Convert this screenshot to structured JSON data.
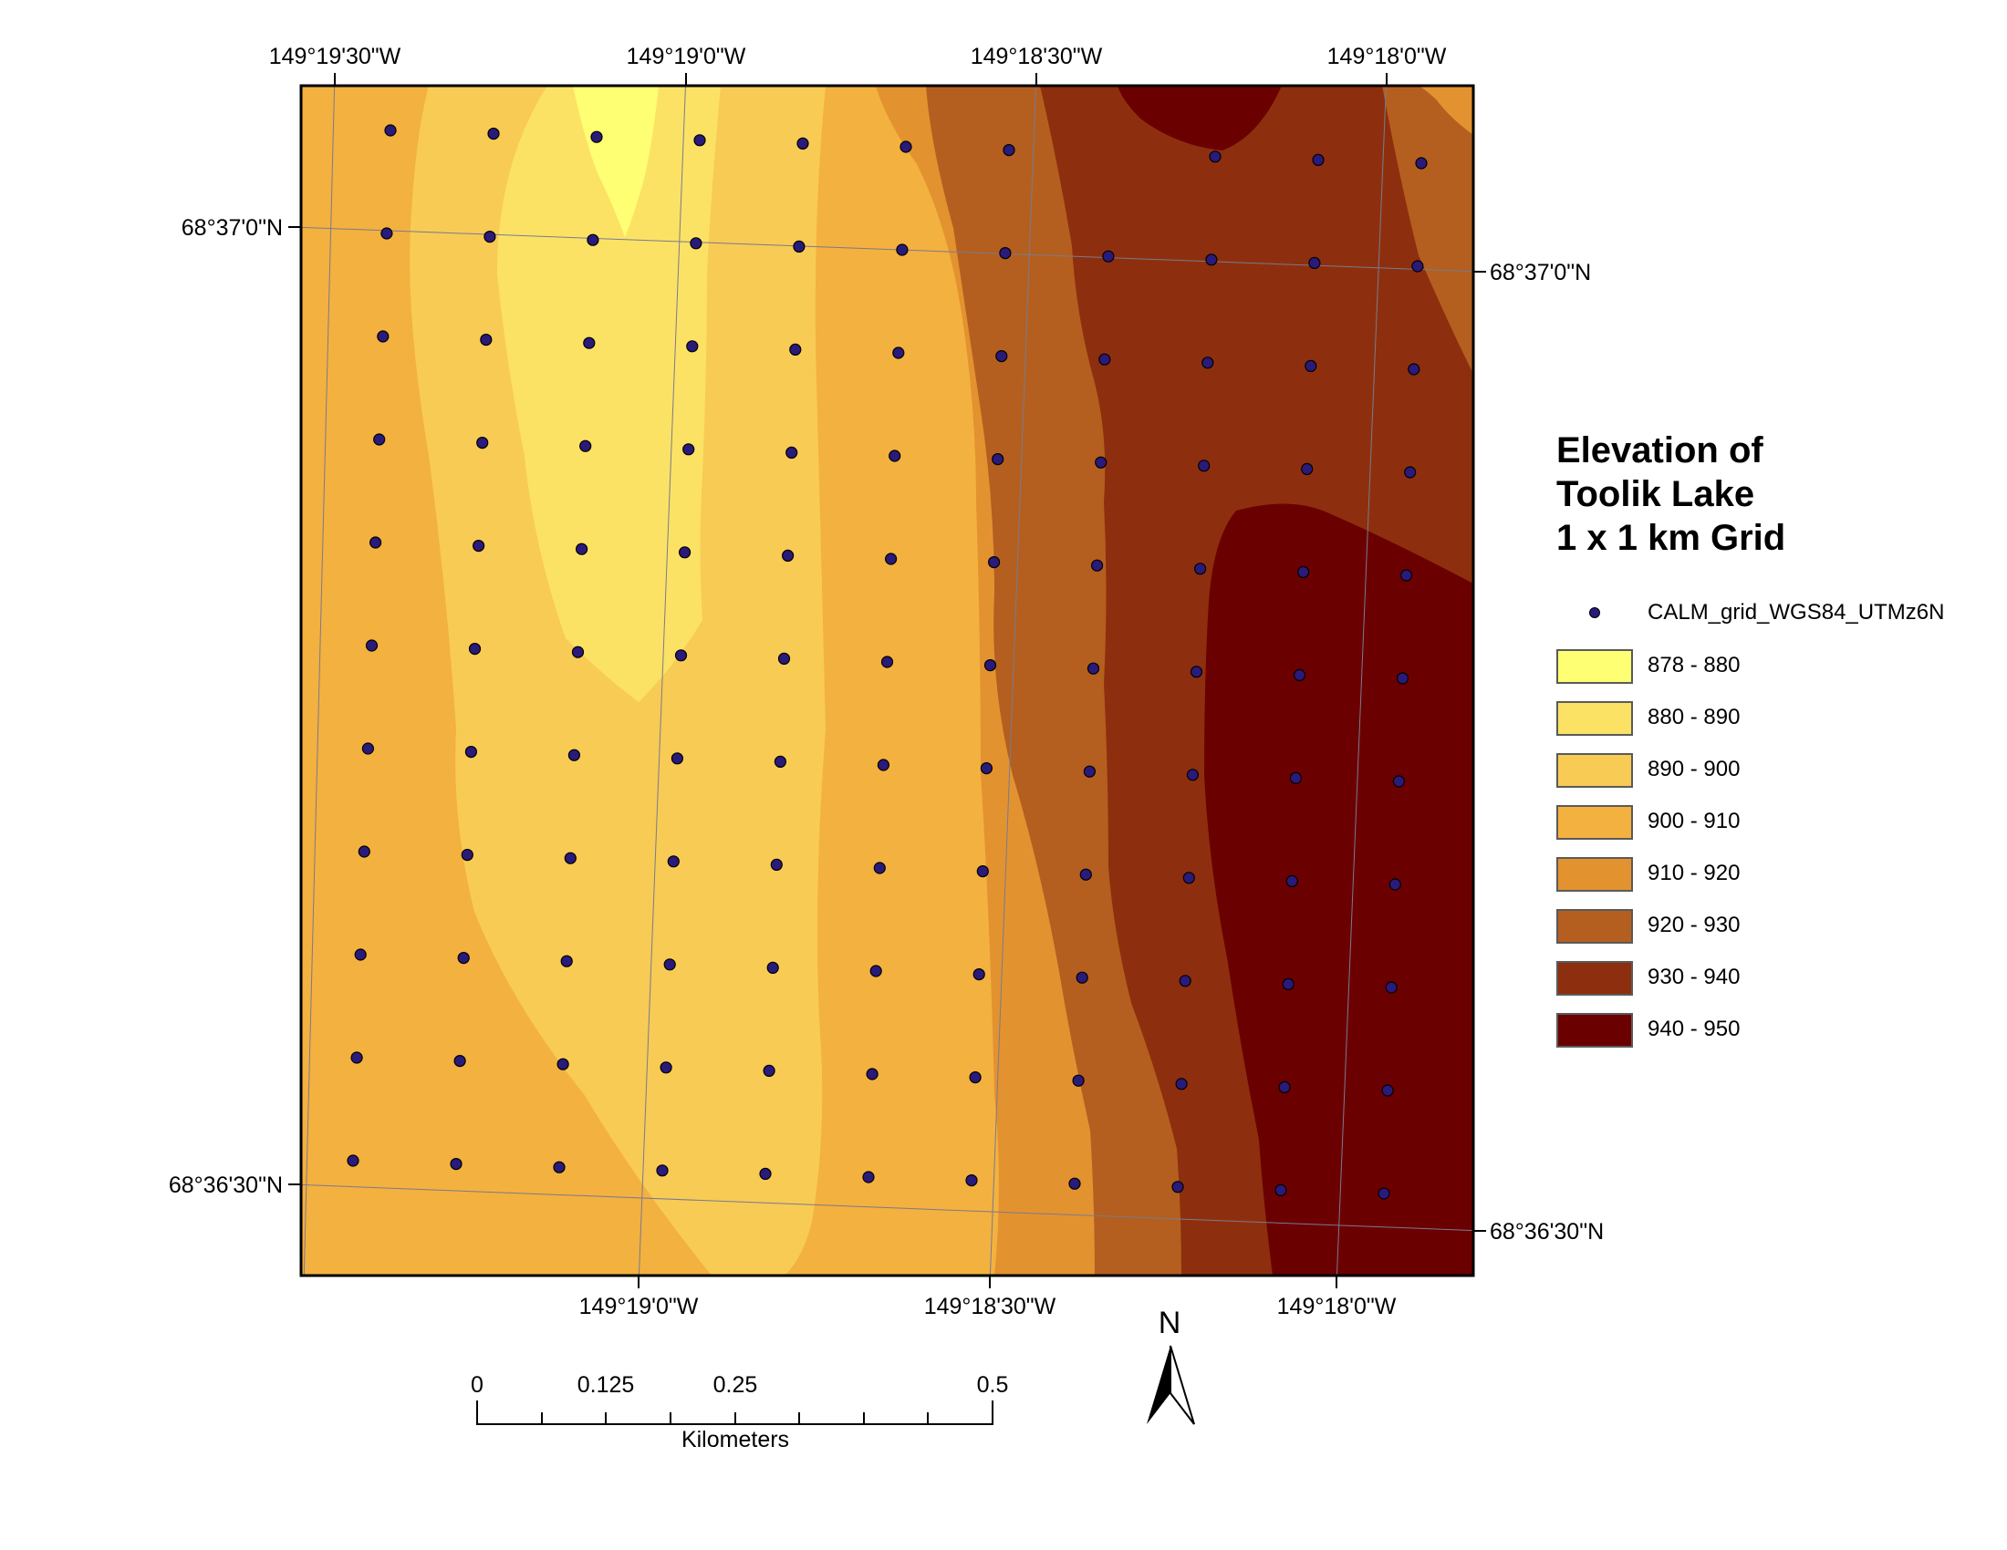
{
  "map": {
    "top_longitude_labels": [
      "149°19'30\"W",
      "149°19'0\"W",
      "149°18'30\"W",
      "149°18'0\"W"
    ],
    "bottom_longitude_labels": [
      "149°19'0\"W",
      "149°18'30\"W",
      "149°18'0\"W"
    ],
    "left_latitude_labels": [
      "68°37'0\"N",
      "68°36'30\"N"
    ],
    "right_latitude_labels": [
      "68°37'0\"N",
      "68°36'30\"N"
    ],
    "grid_rows": 11,
    "grid_cols": 11
  },
  "legend": {
    "title_lines": [
      "Elevation of",
      "Toolik Lake",
      "1 x 1 km Grid"
    ],
    "point_layer": "CALM_grid_WGS84_UTMz6N",
    "point_color": "#2a1a7a",
    "classes": [
      {
        "label": "878 - 880",
        "color": "#ffff73"
      },
      {
        "label": "880 - 890",
        "color": "#fbe265"
      },
      {
        "label": "890 - 900",
        "color": "#f8cb55"
      },
      {
        "label": "900 - 910",
        "color": "#f3b13f"
      },
      {
        "label": "910 - 920",
        "color": "#e39230"
      },
      {
        "label": "920 - 930",
        "color": "#b45f1f"
      },
      {
        "label": "930 - 940",
        "color": "#8d2f0e"
      },
      {
        "label": "940 - 950",
        "color": "#6b0000"
      }
    ]
  },
  "scale_bar": {
    "labels": [
      "0",
      "0.125",
      "0.25",
      "0.5"
    ],
    "unit": "Kilometers"
  },
  "north_arrow": {
    "label": "N"
  }
}
